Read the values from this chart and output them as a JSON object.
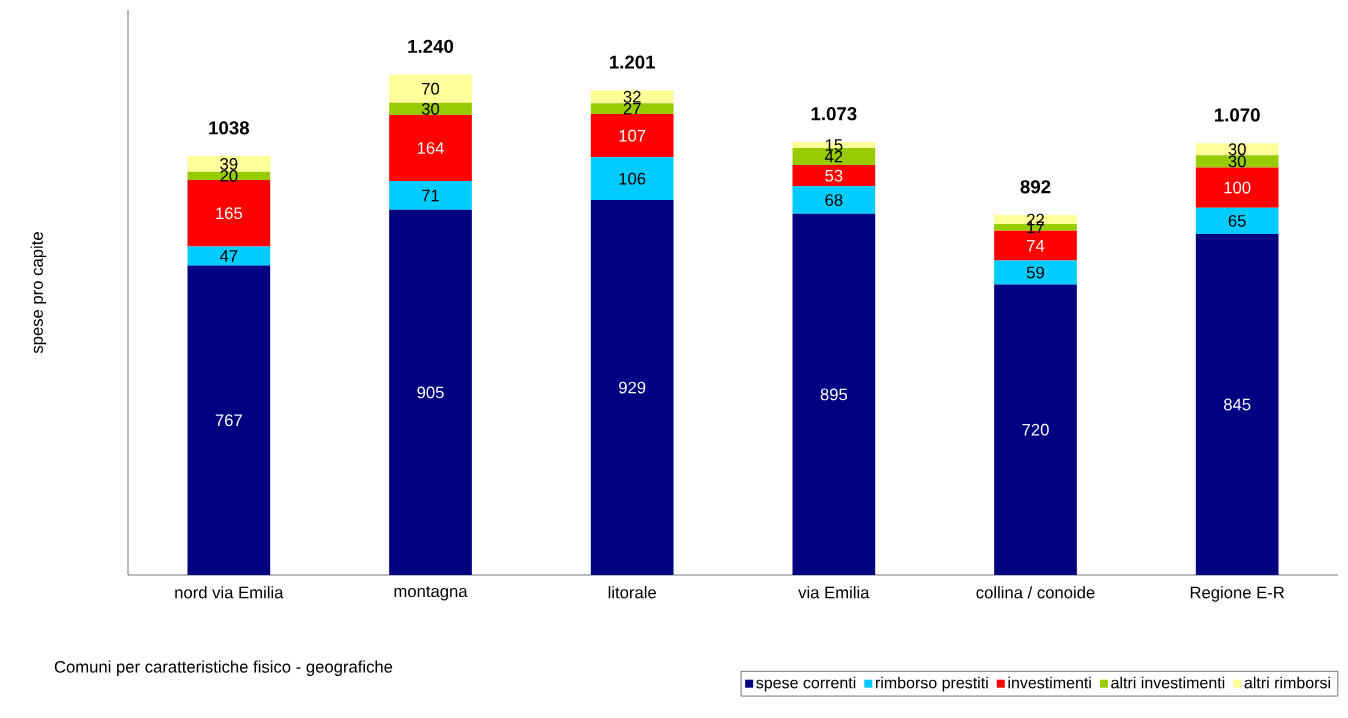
{
  "chart_data": {
    "type": "bar",
    "stacked": true,
    "xlabel": "Comuni per caratteristiche fisico - geografiche",
    "ylabel": "spese pro capite",
    "categories": [
      "nord via Emilia",
      "montagna",
      "litorale",
      "via Emilia",
      "collina / conoide",
      "Regione E-R"
    ],
    "series": [
      {
        "name": "spese correnti",
        "color": "#000080",
        "values": [
          767,
          905,
          929,
          895,
          720,
          845
        ]
      },
      {
        "name": "rimborso prestiti",
        "color": "#00ccff",
        "values": [
          47,
          71,
          106,
          68,
          59,
          65
        ]
      },
      {
        "name": "investimenti",
        "color": "#ff0000",
        "values": [
          165,
          164,
          107,
          53,
          74,
          100
        ]
      },
      {
        "name": "altri investimenti",
        "color": "#99cc00",
        "values": [
          20,
          30,
          27,
          42,
          17,
          30
        ]
      },
      {
        "name": "altri rimborsi",
        "color": "#ffff99",
        "values": [
          39,
          70,
          32,
          15,
          22,
          30
        ]
      }
    ],
    "totals": [
      "1038",
      "1.240",
      "1.201",
      "1.073",
      "892",
      "1.070"
    ],
    "data_labels": true,
    "ylim": [
      0,
      1400
    ],
    "tick_labels": "x",
    "legend": "bottom right"
  }
}
